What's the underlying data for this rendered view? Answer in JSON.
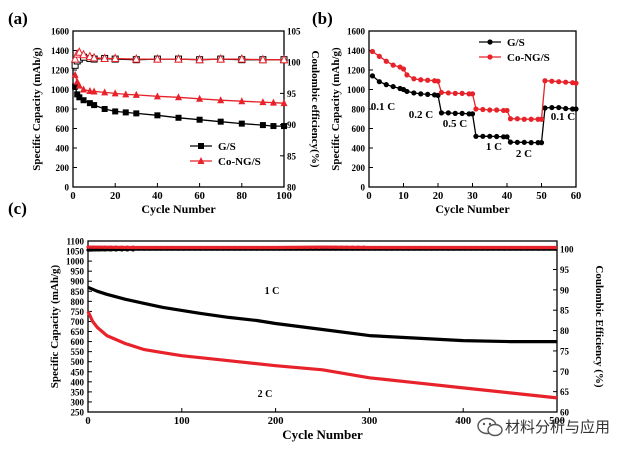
{
  "watermark": {
    "text": "材料分析与应用",
    "icon": "wechat-icon"
  },
  "chart_data": [
    {
      "panel": "(a)",
      "type": "line",
      "xlabel": "Cycle Number",
      "ylabel": "Specific Capacity (mAh/g)",
      "y2label": "Coulombic efficiency(%)",
      "xlim": [
        0,
        100
      ],
      "ylim": [
        0,
        1600
      ],
      "y2lim": [
        80,
        105
      ],
      "xticks": [
        0,
        20,
        40,
        60,
        80,
        100
      ],
      "yticks": [
        0,
        200,
        400,
        600,
        800,
        1000,
        1200,
        1400,
        1600
      ],
      "y2ticks": [
        80,
        85,
        90,
        95,
        100,
        105
      ],
      "legend": [
        "G/S",
        "Co-NG/S"
      ],
      "legend_position": "lower-right",
      "series": [
        {
          "name": "G/S",
          "color": "#000000",
          "axis": "left",
          "marker": "square-filled",
          "x": [
            1,
            2,
            3,
            5,
            8,
            10,
            15,
            20,
            25,
            30,
            40,
            50,
            60,
            70,
            80,
            90,
            95,
            100
          ],
          "values": [
            1030,
            950,
            920,
            890,
            860,
            840,
            800,
            775,
            765,
            755,
            735,
            710,
            690,
            670,
            650,
            635,
            625,
            625
          ]
        },
        {
          "name": "Co-NG/S",
          "color": "#e8222a",
          "axis": "left",
          "marker": "triangle-filled",
          "x": [
            1,
            2,
            3,
            5,
            8,
            10,
            15,
            20,
            25,
            30,
            40,
            50,
            60,
            70,
            80,
            90,
            95,
            100
          ],
          "values": [
            1150,
            1080,
            1040,
            1000,
            985,
            980,
            970,
            960,
            950,
            945,
            930,
            920,
            905,
            890,
            880,
            870,
            865,
            860
          ]
        },
        {
          "name": "G/S CE",
          "color": "#000000",
          "axis": "right",
          "marker": "square-open",
          "x": [
            1,
            2,
            3,
            5,
            8,
            10,
            15,
            20,
            30,
            40,
            50,
            60,
            70,
            80,
            90,
            100
          ],
          "values": [
            99.5,
            100.2,
            100.5,
            100.8,
            100.6,
            100.5,
            100.6,
            100.5,
            100.4,
            100.5,
            100.5,
            100.4,
            100.5,
            100.4,
            100.4,
            100.4
          ]
        },
        {
          "name": "Co-NG/S CE",
          "color": "#e8222a",
          "axis": "right",
          "marker": "triangle-open",
          "x": [
            1,
            2,
            3,
            5,
            8,
            10,
            15,
            20,
            30,
            40,
            50,
            60,
            70,
            80,
            90,
            100
          ],
          "values": [
            100.5,
            101.3,
            101.6,
            101.2,
            100.9,
            100.7,
            100.6,
            100.6,
            100.5,
            100.5,
            100.5,
            100.4,
            100.5,
            100.5,
            100.4,
            100.4
          ]
        }
      ]
    },
    {
      "panel": "(b)",
      "type": "line",
      "xlabel": "Cycle Number",
      "ylabel": "Specific Capacity (mAh/g)",
      "xlim": [
        0,
        60
      ],
      "ylim": [
        0,
        1600
      ],
      "xticks": [
        0,
        10,
        20,
        30,
        40,
        50,
        60
      ],
      "yticks": [
        0,
        200,
        400,
        600,
        800,
        1000,
        1200,
        1400,
        1600
      ],
      "legend": [
        "G/S",
        "Co-NG/S"
      ],
      "legend_position": "top-center",
      "annotations": [
        "0.1 C",
        "0.2 C",
        "0.5 C",
        "1 C",
        "2 C",
        "0.1 C"
      ],
      "series": [
        {
          "name": "G/S",
          "color": "#000000",
          "marker": "circle-filled",
          "x": [
            1,
            3,
            5,
            7,
            9,
            10,
            11,
            13,
            15,
            17,
            19,
            20,
            21,
            23,
            25,
            27,
            29,
            30,
            31,
            33,
            35,
            37,
            39,
            40,
            41,
            43,
            45,
            47,
            49,
            50,
            51,
            53,
            55,
            57,
            59,
            60
          ],
          "values": [
            1140,
            1080,
            1050,
            1030,
            1010,
            1000,
            980,
            965,
            955,
            950,
            945,
            940,
            760,
            760,
            755,
            755,
            750,
            750,
            520,
            520,
            520,
            518,
            515,
            515,
            460,
            458,
            458,
            455,
            455,
            455,
            810,
            815,
            815,
            805,
            800,
            800
          ]
        },
        {
          "name": "Co-NG/S",
          "color": "#e8222a",
          "marker": "circle-filled",
          "x": [
            1,
            3,
            5,
            7,
            9,
            10,
            11,
            13,
            15,
            17,
            19,
            20,
            21,
            23,
            25,
            27,
            29,
            30,
            31,
            33,
            35,
            37,
            39,
            40,
            41,
            43,
            45,
            47,
            49,
            50,
            51,
            53,
            55,
            57,
            59,
            60
          ],
          "values": [
            1390,
            1340,
            1290,
            1250,
            1230,
            1210,
            1150,
            1110,
            1100,
            1095,
            1090,
            1085,
            970,
            965,
            960,
            960,
            955,
            955,
            800,
            795,
            790,
            790,
            785,
            785,
            700,
            700,
            695,
            695,
            695,
            695,
            1090,
            1085,
            1080,
            1075,
            1070,
            1065
          ]
        }
      ]
    },
    {
      "panel": "(c)",
      "type": "line",
      "xlabel": "Cycle Number",
      "ylabel": "Specific Capacity (mAh/g)",
      "y2label": "Coulombic Efficiency (%)",
      "xlim": [
        0,
        500
      ],
      "ylim": [
        250,
        1100
      ],
      "y2lim": [
        60,
        102
      ],
      "xticks": [
        0,
        100,
        200,
        300,
        400,
        500
      ],
      "yticks": [
        250,
        300,
        350,
        400,
        450,
        500,
        550,
        600,
        650,
        700,
        750,
        800,
        850,
        900,
        950,
        1000,
        1050,
        1100
      ],
      "y2ticks": [
        60,
        65,
        70,
        75,
        80,
        85,
        90,
        95,
        100
      ],
      "annotations": [
        "1 C",
        "2 C"
      ],
      "series": [
        {
          "name": "1 C",
          "color": "#000000",
          "axis": "left",
          "x": [
            0,
            10,
            20,
            40,
            60,
            80,
            100,
            120,
            150,
            180,
            200,
            250,
            300,
            340,
            380,
            400,
            450,
            500
          ],
          "values": [
            870,
            850,
            835,
            810,
            790,
            770,
            755,
            740,
            720,
            705,
            690,
            660,
            630,
            620,
            610,
            605,
            600,
            600
          ]
        },
        {
          "name": "2 C",
          "color": "#e8222a",
          "axis": "left",
          "x": [
            0,
            5,
            10,
            20,
            40,
            60,
            80,
            100,
            150,
            200,
            250,
            300,
            350,
            400,
            450,
            500
          ],
          "values": [
            750,
            700,
            670,
            630,
            590,
            560,
            545,
            530,
            505,
            480,
            460,
            420,
            395,
            370,
            345,
            320
          ]
        },
        {
          "name": "1 C CE",
          "color": "#000000",
          "axis": "right",
          "x": [
            0,
            50,
            100,
            150,
            200,
            250,
            300,
            350,
            400,
            450,
            500
          ],
          "values": [
            99.8,
            100,
            100,
            100,
            100,
            100,
            100,
            100,
            100,
            100,
            100
          ]
        },
        {
          "name": "2 C CE",
          "color": "#e8222a",
          "axis": "right",
          "x": [
            0,
            50,
            100,
            150,
            200,
            250,
            300,
            350,
            400,
            450,
            500
          ],
          "values": [
            100.5,
            100.4,
            100.4,
            100.4,
            100.4,
            100.5,
            100.4,
            100.4,
            100.4,
            100.4,
            100.4
          ]
        }
      ]
    }
  ]
}
